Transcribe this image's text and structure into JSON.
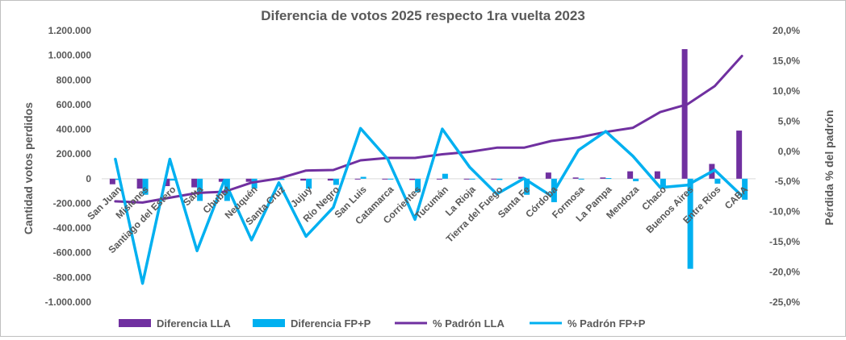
{
  "chart_data": {
    "type": "bar",
    "title": "Diferencia de votos 2025 respecto 1ra vuelta 2023",
    "ylabel": "Cantidad votos perdidos",
    "y2label": "Pérdida % del padrón",
    "ylim": [
      -1000000,
      1200000
    ],
    "y2lim": [
      -25,
      20
    ],
    "yticks": [
      "1.200.000",
      "1.000.000",
      "800.000",
      "600.000",
      "400.000",
      "200.000",
      "0",
      "-200.000",
      "-400.000",
      "-600.000",
      "-800.000",
      "-1.000.000"
    ],
    "y2ticks": [
      "20,0%",
      "15,0%",
      "10,0%",
      "5,0%",
      "0,0%",
      "-5,0%",
      "-10,0%",
      "-15,0%",
      "-20,0%",
      "-25,0%"
    ],
    "categories": [
      "San Juan",
      "Misiones",
      "Santiago del Estero",
      "Salta",
      "Chubut",
      "Neuquén",
      "Santa Cruz",
      "Jujuy",
      "Río Negro",
      "San Luis",
      "Catamarca",
      "Corrientes",
      "Tucumán",
      "La Rioja",
      "Tierra del Fuego",
      "Santa Fe",
      "Córdoba",
      "Formosa",
      "La Pampa",
      "Mendoza",
      "Chaco",
      "Buenos Aires",
      "Entre Ríos",
      "CABA"
    ],
    "series": [
      {
        "name": "Diferencia LLA",
        "kind": "bar",
        "axis": "left",
        "color": "#7030a0",
        "values": [
          -45000,
          -80000,
          -60000,
          -70000,
          -25000,
          -25000,
          -10000,
          -15000,
          -15000,
          -5000,
          -5000,
          -10000,
          -5000,
          -5000,
          -5000,
          15000,
          50000,
          10000,
          10000,
          60000,
          60000,
          1050000,
          120000,
          390000
        ]
      },
      {
        "name": "Diferencia FP+P",
        "kind": "bar",
        "axis": "left",
        "color": "#00b0f0",
        "values": [
          -10000,
          -130000,
          -15000,
          -180000,
          -180000,
          -80000,
          -10000,
          -80000,
          -50000,
          15000,
          -5000,
          -110000,
          40000,
          -5000,
          -10000,
          -130000,
          -190000,
          -5000,
          5000,
          -20000,
          -70000,
          -730000,
          -40000,
          -170000
        ]
      },
      {
        "name": "% Padrón LLA",
        "kind": "line",
        "axis": "right",
        "color": "#7030a0",
        "values": [
          -8.3,
          -8.5,
          -7.7,
          -6.9,
          -6.7,
          -5.2,
          -4.5,
          -3.2,
          -3.1,
          -1.5,
          -1.1,
          -1.1,
          -0.5,
          -0.1,
          0.6,
          0.6,
          1.7,
          2.3,
          3.2,
          3.9,
          6.5,
          7.8,
          10.8,
          15.8
        ]
      },
      {
        "name": "% Padrón FP+P",
        "kind": "line",
        "axis": "right",
        "color": "#00b0f0",
        "values": [
          -1.3,
          -21.9,
          -1.3,
          -16.5,
          -4.8,
          -14.7,
          -5.2,
          -14.1,
          -9.3,
          3.8,
          -1.3,
          -11.3,
          3.7,
          -2.6,
          -7.1,
          -4.5,
          -7.4,
          0.2,
          3.3,
          -0.8,
          -6.0,
          -5.6,
          -3.1,
          -7.4
        ]
      }
    ],
    "legend": {
      "position": "bottom",
      "items": [
        "Diferencia LLA",
        "Diferencia FP+P",
        "% Padrón LLA",
        "% Padrón FP+P"
      ]
    },
    "grid": false
  }
}
